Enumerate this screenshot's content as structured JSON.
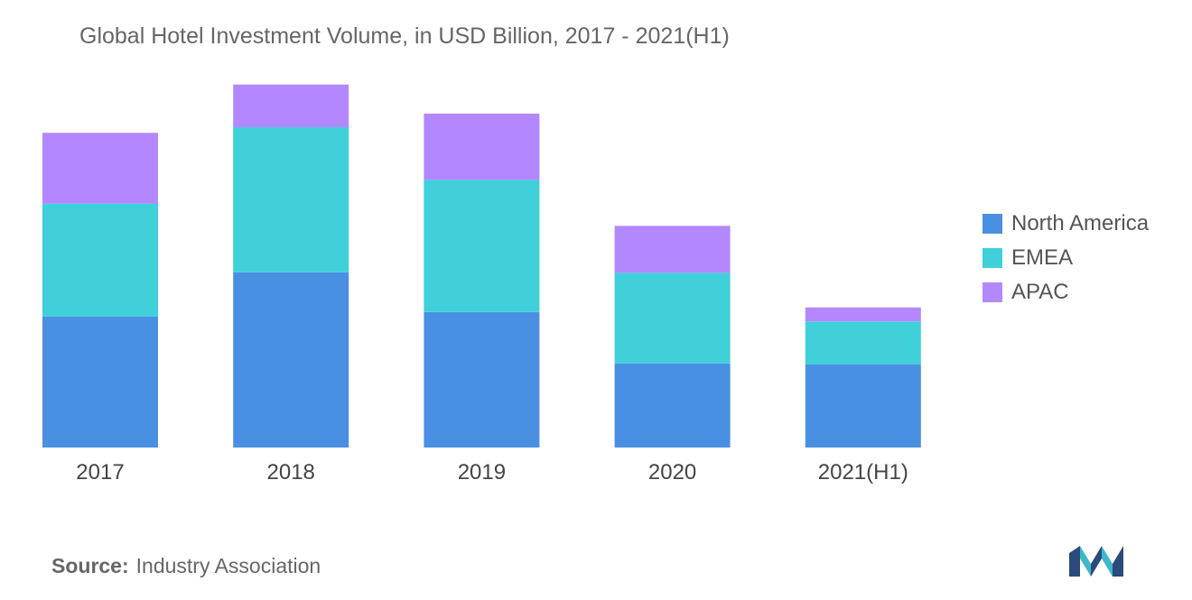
{
  "chart_data": {
    "type": "bar",
    "stacked": true,
    "title": "Global Hotel Investment Volume, in USD Billion, 2017 - 2021(H1)",
    "xlabel": "",
    "ylabel": "",
    "categories": [
      "2017",
      "2018",
      "2019",
      "2020",
      "2021(H1)"
    ],
    "series": [
      {
        "name": "North America",
        "color": "#4a90e2",
        "values": [
          30.7,
          41.0,
          31.7,
          19.7,
          19.5
        ]
      },
      {
        "name": "EMEA",
        "color": "#3fd0d9",
        "values": [
          26.4,
          34.0,
          31.0,
          21.2,
          10.0
        ]
      },
      {
        "name": "APAC",
        "color": "#b388ff",
        "values": [
          16.6,
          10.0,
          15.5,
          11.0,
          3.3
        ]
      }
    ],
    "ylim": [
      0,
      90
    ],
    "grid": false,
    "y_axis_visible": false,
    "legend_position": "right"
  },
  "source": {
    "label": "Source:",
    "text": "Industry Association"
  }
}
